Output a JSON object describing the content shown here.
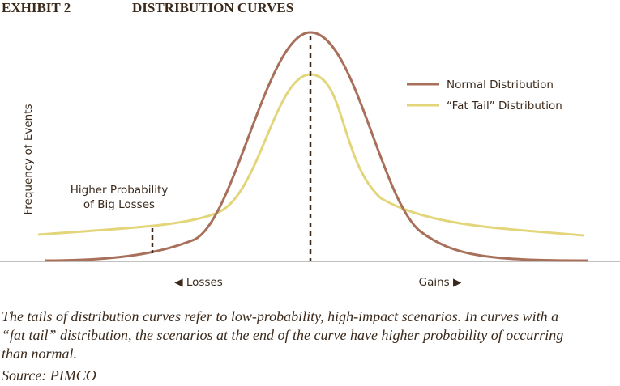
{
  "header": {
    "exhibit": "EXHIBIT 2",
    "title": "DISTRIBUTION CURVES"
  },
  "chart": {
    "y_label": "Frequency of Events",
    "legend": [
      "Normal Distribution",
      "“Fat Tail” Distribution"
    ],
    "annotation": [
      "Higher Probability",
      "of Big Losses"
    ],
    "x_left": "◀ Losses",
    "x_right": "Gains ▶"
  },
  "caption": {
    "lines": [
      "The tails of distribution curves refer to low-probability, high-impact scenarios. In curves with a",
      "“fat tail” distribution, the scenarios at the end of the curve have higher probability of occurring",
      "than normal."
    ],
    "source": "Source: PIMCO"
  }
}
